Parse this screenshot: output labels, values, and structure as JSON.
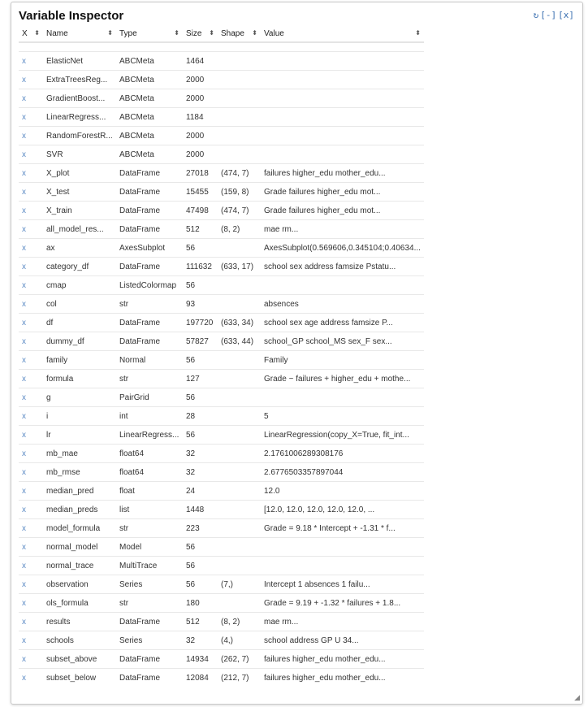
{
  "title": "Variable Inspector",
  "controls": {
    "refresh": "↻",
    "minimize": "[-]",
    "close": "[x]"
  },
  "columns": [
    "X",
    "Name",
    "Type",
    "Size",
    "Shape",
    "Value"
  ],
  "delete_glyph": "x",
  "rows": [
    [
      "ElasticNet",
      "ABCMeta",
      "1464",
      "",
      ""
    ],
    [
      "ExtraTreesReg...",
      "ABCMeta",
      "2000",
      "",
      ""
    ],
    [
      "GradientBoost...",
      "ABCMeta",
      "2000",
      "",
      ""
    ],
    [
      "LinearRegress...",
      "ABCMeta",
      "1184",
      "",
      ""
    ],
    [
      "RandomForestR...",
      "ABCMeta",
      "2000",
      "",
      ""
    ],
    [
      "SVR",
      "ABCMeta",
      "2000",
      "",
      ""
    ],
    [
      "X_plot",
      "DataFrame",
      "27018",
      "(474, 7)",
      "failures higher_edu mother_edu..."
    ],
    [
      "X_test",
      "DataFrame",
      "15455",
      "(159, 8)",
      "Grade failures higher_edu mot..."
    ],
    [
      "X_train",
      "DataFrame",
      "47498",
      "(474, 7)",
      "Grade failures higher_edu mot..."
    ],
    [
      "all_model_res...",
      "DataFrame",
      "512",
      "(8, 2)",
      "mae rm..."
    ],
    [
      "ax",
      "AxesSubplot",
      "56",
      "",
      "AxesSubplot(0.569606,0.345104;0.40634..."
    ],
    [
      "category_df",
      "DataFrame",
      "111632",
      "(633, 17)",
      "school sex address famsize Pstatu..."
    ],
    [
      "cmap",
      "ListedColormap",
      "56",
      "",
      ""
    ],
    [
      "col",
      "str",
      "93",
      "",
      "absences"
    ],
    [
      "df",
      "DataFrame",
      "197720",
      "(633, 34)",
      "school sex age address famsize P..."
    ],
    [
      "dummy_df",
      "DataFrame",
      "57827",
      "(633, 44)",
      "school_GP school_MS sex_F sex..."
    ],
    [
      "family",
      "Normal",
      "56",
      "",
      "Family"
    ],
    [
      "formula",
      "str",
      "127",
      "",
      "Grade ~ failures + higher_edu + mothe..."
    ],
    [
      "g",
      "PairGrid",
      "56",
      "",
      ""
    ],
    [
      "i",
      "int",
      "28",
      "",
      "5"
    ],
    [
      "lr",
      "LinearRegress...",
      "56",
      "",
      "LinearRegression(copy_X=True, fit_int..."
    ],
    [
      "mb_mae",
      "float64",
      "32",
      "",
      "2.1761006289308176"
    ],
    [
      "mb_rmse",
      "float64",
      "32",
      "",
      "2.6776503357897044"
    ],
    [
      "median_pred",
      "float",
      "24",
      "",
      "12.0"
    ],
    [
      "median_preds",
      "list",
      "1448",
      "",
      "[12.0, 12.0, 12.0, 12.0, 12.0, ..."
    ],
    [
      "model_formula",
      "str",
      "223",
      "",
      "Grade = 9.18 * Intercept + -1.31 * f..."
    ],
    [
      "normal_model",
      "Model",
      "56",
      "",
      ""
    ],
    [
      "normal_trace",
      "MultiTrace",
      "56",
      "",
      ""
    ],
    [
      "observation",
      "Series",
      "56",
      "(7,)",
      "Intercept 1 absences 1 failu..."
    ],
    [
      "ols_formula",
      "str",
      "180",
      "",
      "Grade = 9.19 + -1.32 * failures + 1.8..."
    ],
    [
      "results",
      "DataFrame",
      "512",
      "(8, 2)",
      "mae rm..."
    ],
    [
      "schools",
      "Series",
      "32",
      "(4,)",
      "school address GP U 34..."
    ],
    [
      "subset_above",
      "DataFrame",
      "14934",
      "(262, 7)",
      "failures higher_edu mother_edu..."
    ],
    [
      "subset_below",
      "DataFrame",
      "12084",
      "(212, 7)",
      "failures higher_edu mother_edu..."
    ]
  ]
}
